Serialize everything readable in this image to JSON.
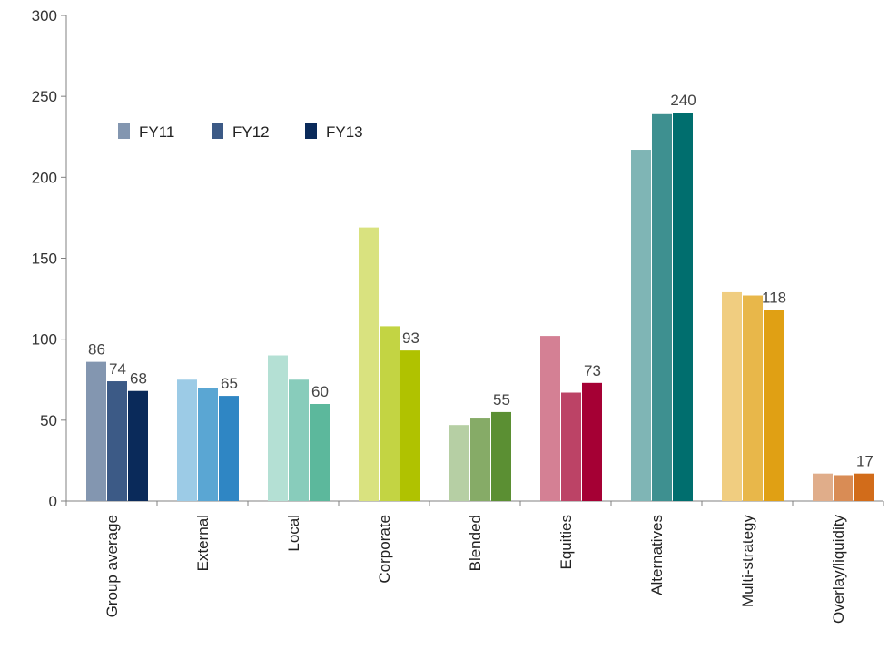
{
  "chart_data": {
    "type": "bar",
    "title": "",
    "xlabel": "",
    "ylabel": "",
    "ylim": [
      0,
      300
    ],
    "yticks": [
      0,
      50,
      100,
      150,
      200,
      250,
      300
    ],
    "grid": false,
    "legend_position": "top-left",
    "categories": [
      "Group average",
      "External",
      "Local",
      "Corporate",
      "Blended",
      "Equities",
      "Alternatives",
      "Multi-strategy",
      "Overlay/liquidity"
    ],
    "legend": [
      {
        "name": "FY11",
        "color": "#8396b0"
      },
      {
        "name": "FY12",
        "color": "#3c5a86"
      },
      {
        "name": "FY13",
        "color": "#0a2a5a"
      }
    ],
    "series": [
      {
        "name": "FY11",
        "values": [
          86,
          75,
          90,
          169,
          47,
          102,
          217,
          129,
          17
        ]
      },
      {
        "name": "FY12",
        "values": [
          74,
          70,
          75,
          108,
          51,
          67,
          239,
          127,
          16
        ]
      },
      {
        "name": "FY13",
        "values": [
          68,
          65,
          60,
          93,
          55,
          73,
          240,
          118,
          17
        ]
      }
    ],
    "category_colors": [
      [
        "#8396b0",
        "#3c5a86",
        "#0a2a5a"
      ],
      [
        "#9ccbe6",
        "#5aa6d3",
        "#2f86c4"
      ],
      [
        "#b4e0d4",
        "#88ccbb",
        "#5cb89c"
      ],
      [
        "#d9e27f",
        "#c3d443",
        "#b0c200"
      ],
      [
        "#b6cfa4",
        "#86ab67",
        "#5b8f33"
      ],
      [
        "#d48094",
        "#bc4366",
        "#a50034"
      ],
      [
        "#7fb5b5",
        "#3e9090",
        "#006e6e"
      ],
      [
        "#f0cd80",
        "#e8b74a",
        "#e0a014"
      ],
      [
        "#e0ad8a",
        "#d98c55",
        "#d26c1a"
      ]
    ],
    "data_labels": [
      {
        "category": "Group average",
        "series": [
          "FY11",
          "FY12",
          "FY13"
        ],
        "texts": [
          "86",
          "74",
          "68"
        ]
      },
      {
        "category": "External",
        "series": [
          "FY13"
        ],
        "texts": [
          "65"
        ]
      },
      {
        "category": "Local",
        "series": [
          "FY13"
        ],
        "texts": [
          "60"
        ]
      },
      {
        "category": "Corporate",
        "series": [
          "FY13"
        ],
        "texts": [
          "93"
        ]
      },
      {
        "category": "Blended",
        "series": [
          "FY13"
        ],
        "texts": [
          "55"
        ]
      },
      {
        "category": "Equities",
        "series": [
          "FY13"
        ],
        "texts": [
          "73"
        ]
      },
      {
        "category": "Alternatives",
        "series": [
          "FY13"
        ],
        "texts": [
          "240"
        ]
      },
      {
        "category": "Multi-strategy",
        "series": [
          "FY13"
        ],
        "texts": [
          "118"
        ]
      },
      {
        "category": "Overlay/liquidity",
        "series": [
          "FY13"
        ],
        "texts": [
          "17"
        ]
      }
    ]
  }
}
